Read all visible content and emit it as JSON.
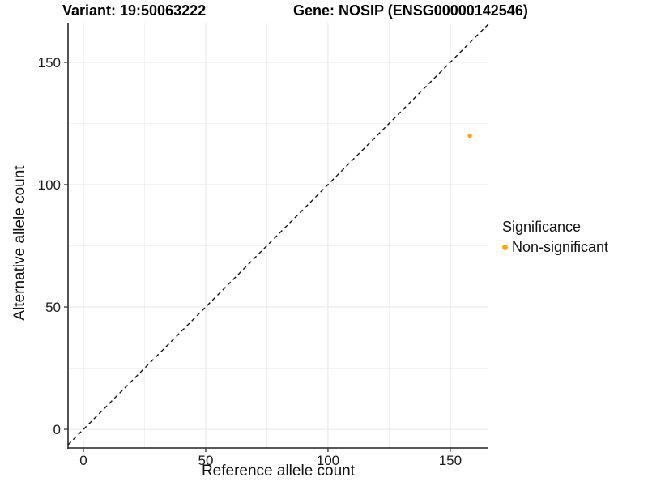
{
  "titles": {
    "left": "Variant: 19:50063222",
    "right": "Gene: NOSIP (ENSG00000142546)"
  },
  "axes": {
    "x_label": "Reference allele count",
    "y_label": "Alternative allele count"
  },
  "legend": {
    "title": "Significance",
    "entries": [
      {
        "label": "Non-significant",
        "color": "#FCA514"
      }
    ]
  },
  "colors": {
    "point": "#FCA514",
    "axis_line": "#404040",
    "grid_major": "#E9E9E9",
    "grid_minor": "#F2F2F2",
    "identity_line": "#111111",
    "tick_text": "#1a1a1a"
  },
  "chart_data": {
    "type": "scatter",
    "title": "Variant: 19:50063222    Gene: NOSIP (ENSG00000142546)",
    "xlabel": "Reference allele count",
    "ylabel": "Alternative allele count",
    "xlim": [
      -6.3,
      165.6
    ],
    "ylim": [
      -7.6,
      166.2
    ],
    "x_ticks": [
      0,
      50,
      100,
      150
    ],
    "y_ticks": [
      0,
      50,
      100,
      150
    ],
    "x_minor_ticks": [
      25,
      75,
      125
    ],
    "y_minor_ticks": [
      25,
      75,
      125
    ],
    "grid": true,
    "legend_position": "right",
    "identity_line": {
      "slope": 1,
      "intercept": 0,
      "style": "dashed"
    },
    "series": [
      {
        "name": "Non-significant",
        "color": "#FCA514",
        "points": [
          {
            "x": 158,
            "y": 120
          }
        ]
      }
    ]
  }
}
